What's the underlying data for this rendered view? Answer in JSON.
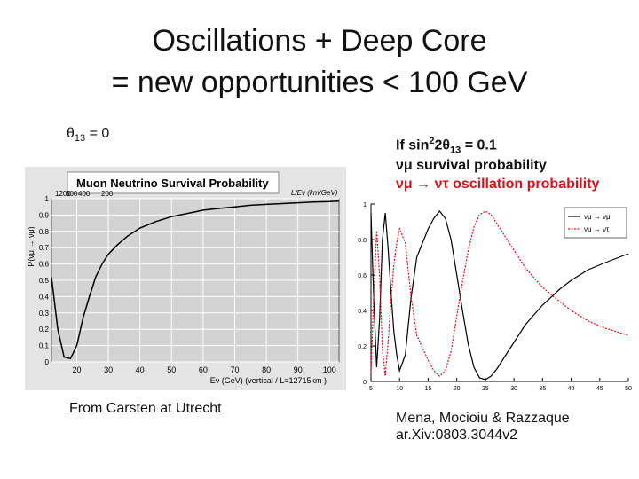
{
  "header": {
    "title_line1": "Oscillations + Deep Core",
    "title_line2": "= new opportunities < 100 GeV"
  },
  "left": {
    "theta_greek": "θ",
    "theta_sub": "13",
    "theta_rest": " = 0",
    "credit": "From Carsten at Utrecht"
  },
  "right": {
    "if_prefix": "If sin",
    "if_sup": "2",
    "if_mid": "2θ",
    "if_sub": "13",
    "if_rest": " = 0.1",
    "surv_greek": "νμ",
    "surv_text": " survival probability",
    "osc_text": "νμ → ντ oscillation probability",
    "credit_line1": "Mena, Mocioiu & Razzaque",
    "credit_line2": "ar.Xiv:0803.3044v2"
  },
  "chart_data": [
    {
      "type": "line",
      "title": "Muon Neutrino Survival Probability",
      "ylabel": "P(νμ → νμ)",
      "xlabel": "Eν (GeV) (vertical / L=12715km )",
      "top_axis_label": "L/Eν (km/GeV)",
      "top_ticks": [
        "1200",
        "600",
        "400",
        "200"
      ],
      "x_ticks": [
        20,
        30,
        40,
        50,
        60,
        70,
        80,
        90,
        100
      ],
      "y_ticks": [
        0,
        0.1,
        0.2,
        0.3,
        0.4,
        0.5,
        0.6,
        0.7,
        0.8,
        0.9,
        1
      ],
      "xlim": [
        12,
        103
      ],
      "ylim": [
        0,
        1
      ],
      "grid": true,
      "colors": {
        "plot_bg": "#d3d3d3",
        "frame_bg": "#e4e4e4",
        "line": "#000000",
        "grid": "#ffffff"
      },
      "series": [
        {
          "x": [
            12,
            14,
            16,
            18,
            20,
            22,
            24,
            25,
            26,
            28,
            30,
            33,
            36,
            40,
            45,
            50,
            55,
            60,
            65,
            70,
            75,
            80,
            85,
            90,
            95,
            100,
            103
          ],
          "values": [
            0.52,
            0.2,
            0.03,
            0.02,
            0.1,
            0.27,
            0.4,
            0.46,
            0.52,
            0.6,
            0.66,
            0.72,
            0.77,
            0.82,
            0.86,
            0.89,
            0.91,
            0.93,
            0.94,
            0.95,
            0.96,
            0.965,
            0.97,
            0.975,
            0.98,
            0.982,
            0.985
          ]
        }
      ]
    },
    {
      "type": "line",
      "x_ticks": [
        5,
        10,
        15,
        20,
        25,
        30,
        35,
        40,
        45,
        50
      ],
      "y_ticks": [
        0,
        0.2,
        0.4,
        0.6,
        0.8,
        1
      ],
      "xlim": [
        5,
        50
      ],
      "ylim": [
        0,
        1
      ],
      "legend": "top-right",
      "legend_entries": [
        "νμ → νμ",
        "νμ → ντ"
      ],
      "colors": {
        "survival": "#000000",
        "oscillation": "#e0101b"
      },
      "series": [
        {
          "x": [
            5,
            5.5,
            6,
            6.5,
            7,
            7.5,
            8,
            8.5,
            9,
            9.5,
            10,
            11,
            12,
            13,
            14,
            15,
            16,
            17,
            18,
            19,
            20,
            21,
            22,
            23,
            24,
            25,
            26,
            27,
            28,
            30,
            32,
            35,
            38,
            40,
            43,
            46,
            50
          ],
          "values": [
            0.95,
            0.45,
            0.08,
            0.35,
            0.8,
            0.95,
            0.75,
            0.5,
            0.28,
            0.15,
            0.06,
            0.15,
            0.47,
            0.7,
            0.78,
            0.86,
            0.92,
            0.96,
            0.92,
            0.8,
            0.6,
            0.4,
            0.21,
            0.08,
            0.02,
            0.01,
            0.03,
            0.07,
            0.12,
            0.22,
            0.32,
            0.43,
            0.52,
            0.57,
            0.63,
            0.67,
            0.72
          ]
        },
        {
          "x": [
            5,
            5.5,
            6,
            6.5,
            7,
            7.5,
            8,
            8.5,
            9,
            9.5,
            10,
            11,
            12,
            13,
            14,
            15,
            16,
            17,
            18,
            19,
            20,
            21,
            22,
            23,
            24,
            25,
            26,
            27,
            28,
            30,
            32,
            35,
            38,
            40,
            43,
            46,
            50
          ],
          "values": [
            0.05,
            0.5,
            0.85,
            0.6,
            0.18,
            0.03,
            0.22,
            0.46,
            0.66,
            0.78,
            0.86,
            0.78,
            0.48,
            0.26,
            0.19,
            0.12,
            0.06,
            0.03,
            0.06,
            0.17,
            0.37,
            0.56,
            0.74,
            0.87,
            0.94,
            0.96,
            0.94,
            0.89,
            0.84,
            0.74,
            0.64,
            0.53,
            0.45,
            0.4,
            0.34,
            0.3,
            0.26
          ]
        }
      ]
    }
  ]
}
